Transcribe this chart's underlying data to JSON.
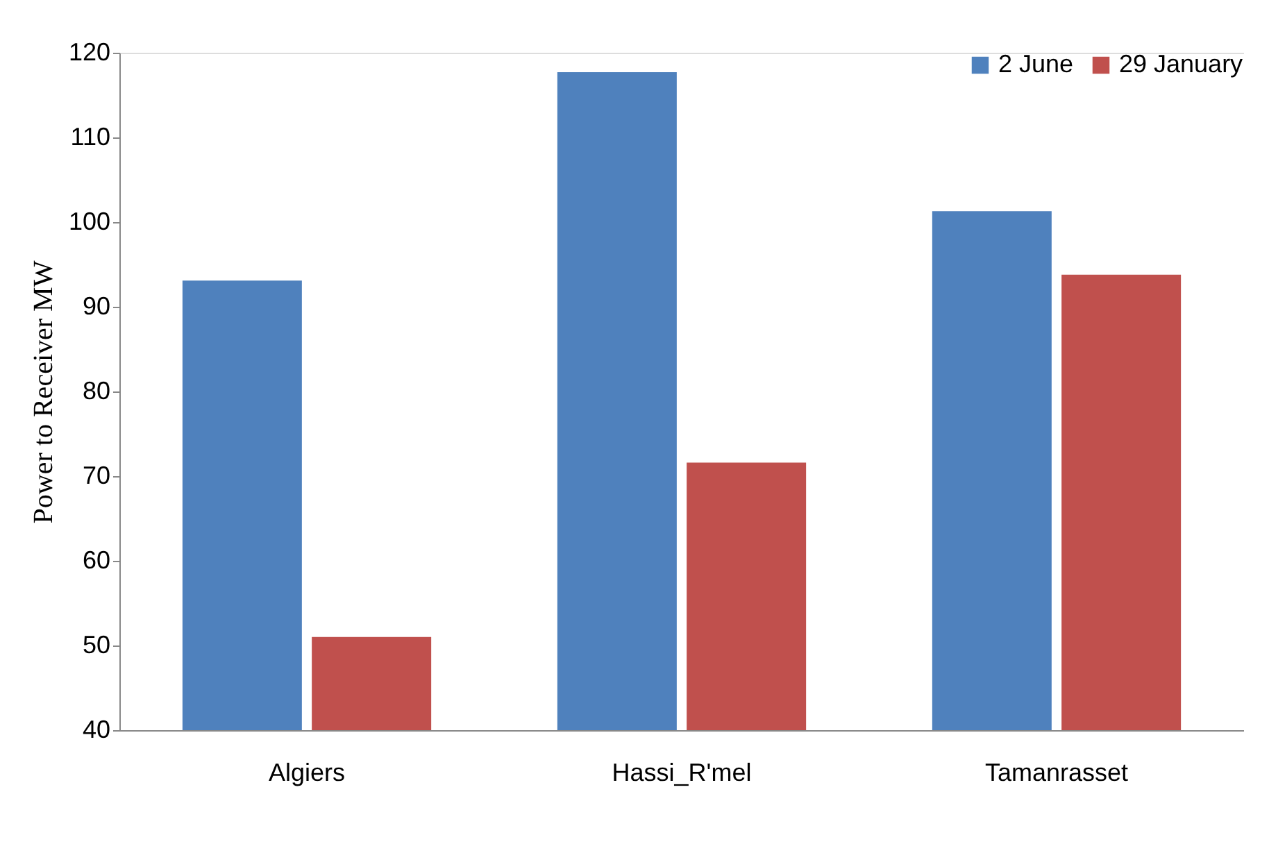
{
  "chart_data": {
    "type": "bar",
    "ylabel": "Power to Receiver MW",
    "categories": [
      "Algiers",
      "Hassi_R'mel",
      "Tamanrasset"
    ],
    "series": [
      {
        "name": "2 June",
        "color": "#4f81bd",
        "values": [
          93.1,
          117.7,
          101.3
        ]
      },
      {
        "name": "29 January",
        "color": "#c0504d",
        "values": [
          51.0,
          71.6,
          93.8
        ]
      }
    ],
    "ylim": [
      40,
      120
    ],
    "yticks": [
      40,
      50,
      60,
      70,
      80,
      90,
      100,
      110,
      120
    ],
    "grid": false,
    "legend": "top right"
  }
}
